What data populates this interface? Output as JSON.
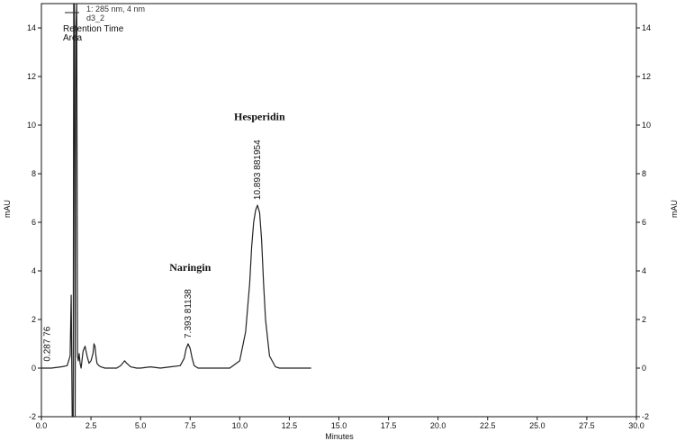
{
  "chart_data": {
    "type": "line",
    "title": "",
    "xlabel": "Minutes",
    "ylabel_left": "mAU",
    "ylabel_right": "mAU",
    "xlim": [
      0,
      30
    ],
    "ylim": [
      -2,
      15
    ],
    "x_ticks": [
      "0.0",
      "2.5",
      "5.0",
      "7.5",
      "10.0",
      "12.5",
      "15.0",
      "17.5",
      "20.0",
      "22.5",
      "25.0",
      "27.5",
      "30.0"
    ],
    "y_ticks": [
      "-2",
      "0",
      "2",
      "4",
      "6",
      "8",
      "10",
      "12",
      "14"
    ],
    "grid": false,
    "legend": {
      "position": "top-left",
      "entries": [
        "1: 285 nm, 4 nm",
        "d3_2",
        "Retention Time",
        "Area"
      ]
    },
    "series": [
      {
        "name": "d3_2",
        "color": "#222222",
        "x": [
          0.0,
          0.5,
          1.0,
          1.3,
          1.45,
          1.5,
          1.55,
          1.6,
          1.63,
          1.66,
          1.7,
          1.74,
          1.78,
          1.82,
          1.86,
          1.9,
          1.95,
          2.0,
          2.1,
          2.2,
          2.3,
          2.4,
          2.5,
          2.6,
          2.65,
          2.7,
          2.75,
          2.8,
          2.9,
          3.0,
          3.2,
          3.5,
          3.8,
          4.0,
          4.2,
          4.3,
          4.5,
          4.8,
          5.0,
          5.5,
          6.0,
          6.5,
          7.0,
          7.2,
          7.3,
          7.4,
          7.5,
          7.6,
          7.7,
          7.9,
          8.2,
          8.5,
          9.0,
          9.5,
          10.0,
          10.3,
          10.5,
          10.6,
          10.7,
          10.8,
          10.893,
          11.0,
          11.1,
          11.2,
          11.3,
          11.5,
          11.8,
          12.0,
          12.5,
          13.0,
          13.6
        ],
        "y": [
          0.0,
          0.0,
          0.05,
          0.1,
          0.5,
          3.0,
          -2.0,
          -2.0,
          15.0,
          15.0,
          -2.0,
          14.0,
          15.0,
          0.5,
          0.3,
          0.6,
          0.2,
          0.0,
          0.7,
          0.9,
          0.5,
          0.2,
          0.3,
          0.6,
          1.0,
          0.9,
          0.5,
          0.2,
          0.1,
          0.05,
          0.0,
          0.0,
          0.0,
          0.1,
          0.3,
          0.2,
          0.05,
          0.0,
          0.0,
          0.05,
          0.0,
          0.05,
          0.1,
          0.4,
          0.8,
          1.0,
          0.8,
          0.4,
          0.1,
          0.0,
          0.0,
          0.0,
          0.0,
          0.0,
          0.3,
          1.5,
          3.5,
          5.0,
          6.0,
          6.5,
          6.7,
          6.4,
          5.3,
          3.5,
          2.0,
          0.5,
          0.05,
          0.0,
          0.0,
          0.0,
          0.0
        ]
      }
    ],
    "annotations": [
      {
        "x": 0.287,
        "y": 0.05,
        "label": "0.287  76",
        "style": "rotated"
      },
      {
        "x": 7.393,
        "y": 1.0,
        "label": "7.393  81138",
        "style": "rotated"
      },
      {
        "x": 10.893,
        "y": 6.7,
        "label": "10.893  881954",
        "style": "rotated"
      },
      {
        "x": 7.5,
        "y": 4.0,
        "label": "Naringin",
        "style": "bold-serif"
      },
      {
        "x": 11.0,
        "y": 10.2,
        "label": "Hesperidin",
        "style": "bold-serif"
      }
    ]
  }
}
